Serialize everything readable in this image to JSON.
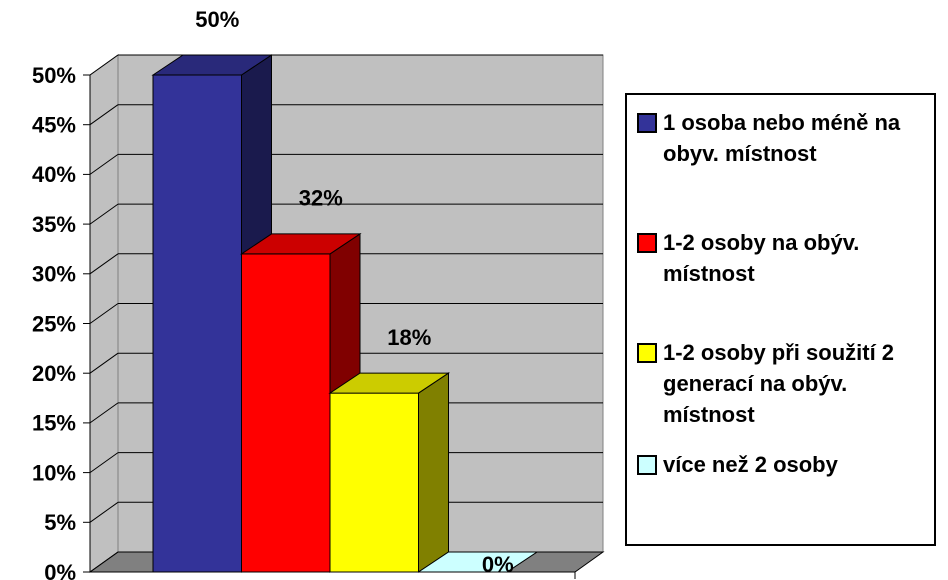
{
  "chart_data": {
    "type": "bar3d",
    "ylim": [
      0,
      50
    ],
    "yticks": [
      {
        "value": 0,
        "label": "0%"
      },
      {
        "value": 5,
        "label": "5%"
      },
      {
        "value": 10,
        "label": "10%"
      },
      {
        "value": 15,
        "label": "15%"
      },
      {
        "value": 20,
        "label": "20%"
      },
      {
        "value": 25,
        "label": "25%"
      },
      {
        "value": 30,
        "label": "30%"
      },
      {
        "value": 35,
        "label": "35%"
      },
      {
        "value": 40,
        "label": "40%"
      },
      {
        "value": 45,
        "label": "45%"
      },
      {
        "value": 50,
        "label": "50%"
      }
    ],
    "grid": true,
    "legend": "right",
    "series": [
      {
        "name": "1 osoba nebo méně na obyv. místnost",
        "color": "#333399",
        "values": [
          50
        ],
        "value_labels": [
          "50%"
        ]
      },
      {
        "name": "1-2 osoby na obýv. místnost",
        "color": "#ff0000",
        "values": [
          32
        ],
        "value_labels": [
          "32%"
        ]
      },
      {
        "name": "1-2 osoby při soužití 2 generací na obýv. místnost",
        "color": "#ffff00",
        "values": [
          18
        ],
        "value_labels": [
          "18%"
        ]
      },
      {
        "name": "více než 2 osoby",
        "color": "#ccffff",
        "values": [
          0
        ],
        "value_labels": [
          "0%"
        ]
      }
    ]
  }
}
